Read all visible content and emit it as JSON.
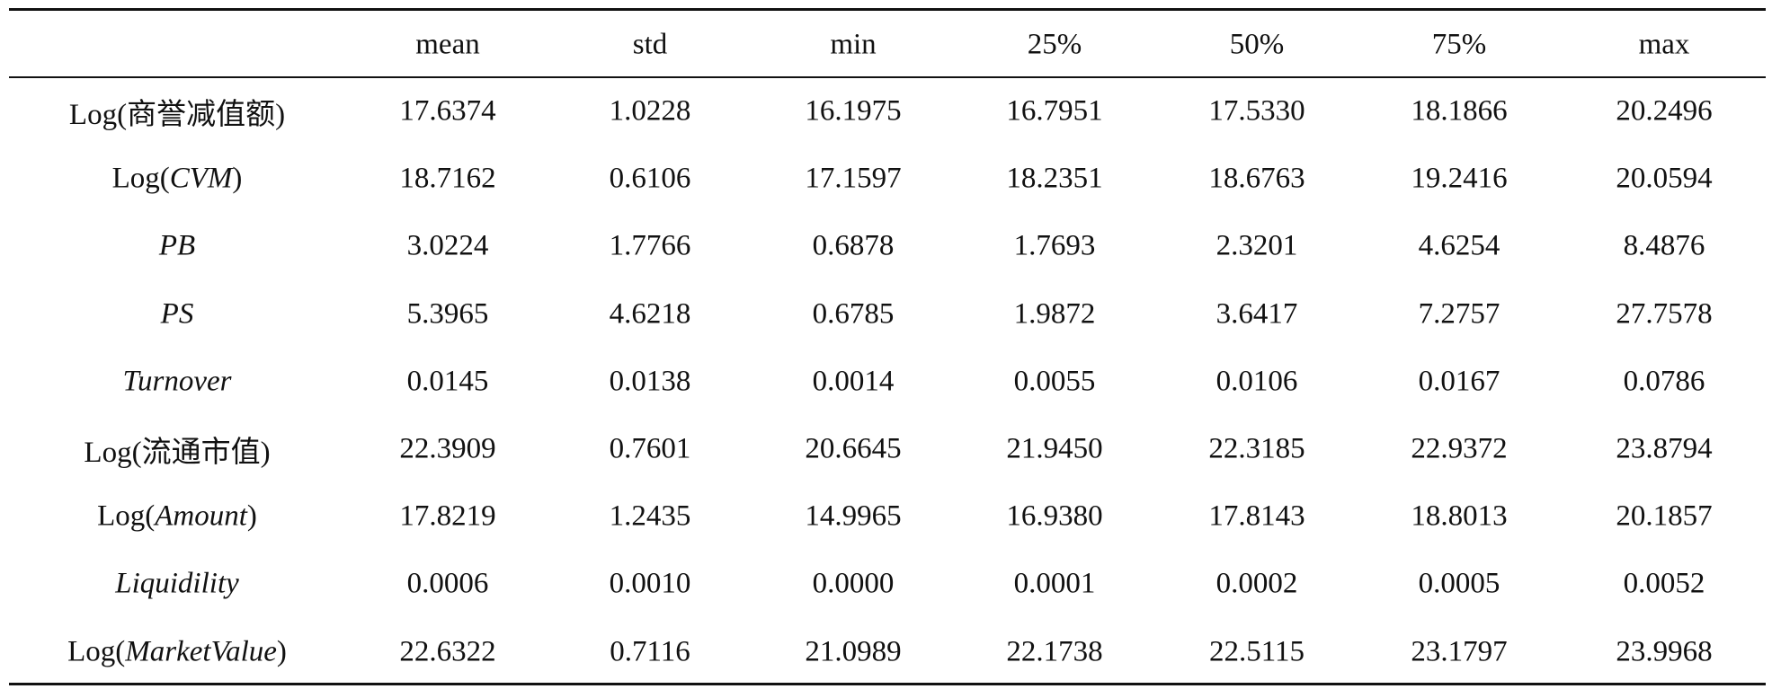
{
  "table": {
    "columns": [
      "mean",
      "std",
      "min",
      "25%",
      "50%",
      "75%",
      "max"
    ],
    "rows": [
      {
        "label": [
          "Log(",
          "商誉减值额",
          ")"
        ],
        "cells": [
          "17.6374",
          "1.0228",
          "16.1975",
          "16.7951",
          "17.5330",
          "18.1866",
          "20.2496"
        ]
      },
      {
        "label": [
          "Log(",
          "CVM",
          ")"
        ],
        "italic": 1,
        "cells": [
          "18.7162",
          "0.6106",
          "17.1597",
          "18.2351",
          "18.6763",
          "19.2416",
          "20.0594"
        ]
      },
      {
        "label": [
          "PB"
        ],
        "italic": 0,
        "cells": [
          "3.0224",
          "1.7766",
          "0.6878",
          "1.7693",
          "2.3201",
          "4.6254",
          "8.4876"
        ]
      },
      {
        "label": [
          "PS"
        ],
        "italic": 0,
        "cells": [
          "5.3965",
          "4.6218",
          "0.6785",
          "1.9872",
          "3.6417",
          "7.2757",
          "27.7578"
        ]
      },
      {
        "label": [
          "Turnover"
        ],
        "italic": 0,
        "cells": [
          "0.0145",
          "0.0138",
          "0.0014",
          "0.0055",
          "0.0106",
          "0.0167",
          "0.0786"
        ]
      },
      {
        "label": [
          "Log(",
          "流通市值",
          ")"
        ],
        "cells": [
          "22.3909",
          "0.7601",
          "20.6645",
          "21.9450",
          "22.3185",
          "22.9372",
          "23.8794"
        ]
      },
      {
        "label": [
          "Log(",
          "Amount",
          ")"
        ],
        "italic": 1,
        "cells": [
          "17.8219",
          "1.2435",
          "14.9965",
          "16.9380",
          "17.8143",
          "18.8013",
          "20.1857"
        ]
      },
      {
        "label": [
          "Liquidility"
        ],
        "italic": 0,
        "cells": [
          "0.0006",
          "0.0010",
          "0.0000",
          "0.0001",
          "0.0002",
          "0.0005",
          "0.0052"
        ]
      },
      {
        "label": [
          "Log(",
          "MarketValue",
          ")"
        ],
        "italic": 1,
        "cells": [
          "22.6322",
          "0.7116",
          "21.0989",
          "22.1738",
          "22.5115",
          "23.1797",
          "23.9968"
        ]
      }
    ]
  }
}
